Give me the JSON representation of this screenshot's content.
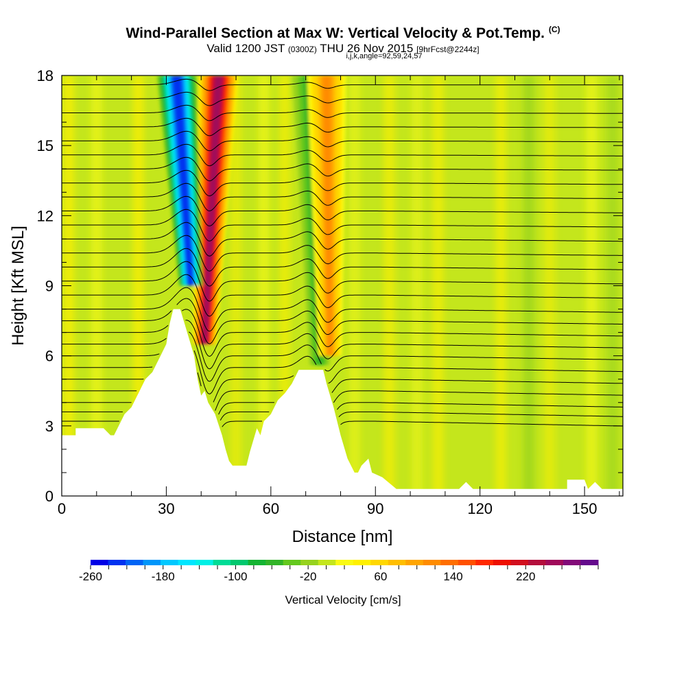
{
  "header": {
    "title": "Wind-Parallel Section at Max W: Vertical Velocity & Pot.Temp.",
    "copyright": "(C)",
    "valid_prefix": "Valid 1200 JST",
    "valid_utc": "(0300Z)",
    "valid_date": "THU 26 Nov 2015",
    "forecast": "[9hrFcst@2244z]",
    "indices": "i,j,k,angle=92,59,24,57"
  },
  "chart_data": {
    "type": "heatmap",
    "xlabel": "Distance [nm]",
    "ylabel": "Height [Kft MSL]",
    "xlim": [
      0,
      161
    ],
    "ylim": [
      0,
      18
    ],
    "x_ticks": [
      0,
      30,
      60,
      90,
      120,
      150
    ],
    "y_ticks": [
      0,
      3,
      6,
      9,
      12,
      15,
      18
    ],
    "x_tick_labels": [
      "0",
      "30",
      "60",
      "90",
      "120",
      "150"
    ],
    "y_tick_labels": [
      "0",
      "3",
      "6",
      "9",
      "12",
      "15",
      "18"
    ],
    "background_color": "#c4e61c",
    "terrain_profile_kft": [
      [
        0,
        2.6
      ],
      [
        4,
        2.6
      ],
      [
        4,
        2.9
      ],
      [
        12,
        2.9
      ],
      [
        14,
        2.6
      ],
      [
        15,
        2.6
      ],
      [
        16,
        2.9
      ],
      [
        18,
        3.5
      ],
      [
        20,
        3.8
      ],
      [
        22,
        4.4
      ],
      [
        24,
        5.0
      ],
      [
        26,
        5.3
      ],
      [
        28,
        5.9
      ],
      [
        30,
        6.5
      ],
      [
        31,
        7.4
      ],
      [
        32,
        8.0
      ],
      [
        34,
        8.0
      ],
      [
        36,
        7.0
      ],
      [
        38,
        6.0
      ],
      [
        39,
        5.0
      ],
      [
        40,
        4.3
      ],
      [
        41,
        4.5
      ],
      [
        42,
        4.0
      ],
      [
        44,
        3.5
      ],
      [
        46,
        2.6
      ],
      [
        47,
        2.0
      ],
      [
        48,
        1.5
      ],
      [
        49,
        1.3
      ],
      [
        53,
        1.3
      ],
      [
        54,
        1.9
      ],
      [
        56,
        2.9
      ],
      [
        57,
        2.6
      ],
      [
        58,
        3.2
      ],
      [
        60,
        3.5
      ],
      [
        62,
        4.1
      ],
      [
        64,
        4.4
      ],
      [
        66,
        4.8
      ],
      [
        68,
        5.4
      ],
      [
        75,
        5.4
      ],
      [
        76,
        4.8
      ],
      [
        78,
        3.8
      ],
      [
        80,
        2.6
      ],
      [
        82,
        1.6
      ],
      [
        84,
        1.0
      ],
      [
        85,
        1.0
      ],
      [
        86,
        1.3
      ],
      [
        88,
        1.6
      ],
      [
        89,
        1.0
      ],
      [
        92,
        0.8
      ],
      [
        96,
        0.3
      ],
      [
        114,
        0.3
      ],
      [
        116,
        0.6
      ],
      [
        118,
        0.3
      ],
      [
        145,
        0.3
      ],
      [
        145,
        0.7
      ],
      [
        150,
        0.7
      ],
      [
        151,
        0.3
      ],
      [
        153,
        0.6
      ],
      [
        155,
        0.3
      ],
      [
        161,
        0.3
      ]
    ],
    "velocity_bands": [
      {
        "name": "updraft-east",
        "x_base": 41,
        "z_base": 6.5,
        "x_top": 45,
        "z_top": 18,
        "value": 250
      },
      {
        "name": "downdraft-west",
        "x_base": 37,
        "z_base": 9.0,
        "x_top": 33,
        "z_top": 18,
        "value": -250
      },
      {
        "name": "downdraft-lee",
        "x_base": 74,
        "z_base": 5.6,
        "x_top": 71,
        "z_top": 18,
        "value": -60
      },
      {
        "name": "updraft-lee",
        "x_base": 77,
        "z_base": 6.0,
        "x_top": 76,
        "z_top": 18,
        "value": 120
      }
    ],
    "isentropes_kft": [
      3.2,
      3.6,
      4.0,
      4.5,
      5.0,
      5.5,
      6.0,
      6.5,
      7.0,
      7.5,
      8.0,
      8.6,
      9.2,
      9.8,
      10.4,
      11.0,
      11.6,
      12.2,
      12.8,
      13.4,
      14.0,
      14.6,
      15.2,
      15.8,
      16.4,
      17.0,
      17.6
    ],
    "colorbar": {
      "title": "Vertical Velocity [cm/s]",
      "min": -260,
      "max": 300,
      "step": 20,
      "labels": [
        "-260",
        "-180",
        "-100",
        "-20",
        "60",
        "140",
        "220"
      ],
      "label_values": [
        -260,
        -180,
        -100,
        -20,
        60,
        140,
        220
      ],
      "colors": [
        "#0000e6",
        "#0032f0",
        "#0064f5",
        "#0096fa",
        "#00c8ff",
        "#00e6ff",
        "#00f0e6",
        "#00dc96",
        "#00c86e",
        "#14b432",
        "#32b428",
        "#64c81e",
        "#96d21e",
        "#c4e61c",
        "#fafa14",
        "#fff000",
        "#ffd700",
        "#ffbe00",
        "#ffa500",
        "#ff8c00",
        "#ff6e00",
        "#ff5000",
        "#ff2800",
        "#ee1000",
        "#d20f1e",
        "#b40f3c",
        "#a00a5a",
        "#820a78",
        "#640a8c"
      ]
    }
  }
}
